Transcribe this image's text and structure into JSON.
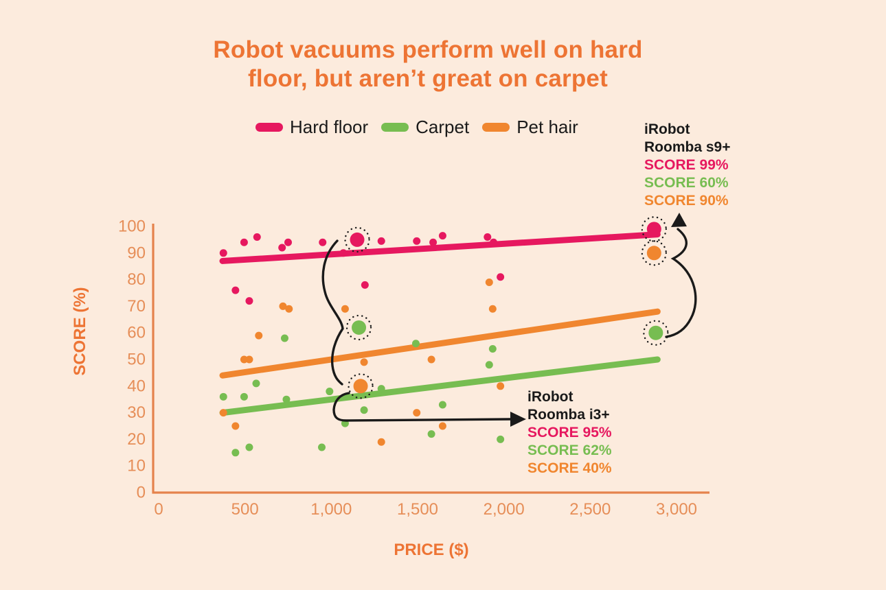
{
  "title": {
    "line1": "Robot vacuums perform well on hard",
    "line2": "floor, but aren’t great on carpet"
  },
  "legend": [
    {
      "label": "Hard floor",
      "color": "#E6185F"
    },
    {
      "label": "Carpet",
      "color": "#77BD51"
    },
    {
      "label": "Pet hair",
      "color": "#F0862F"
    }
  ],
  "annotations": {
    "s9": {
      "name_line1": "iRobot",
      "name_line2": "Roomba s9+",
      "scores": [
        {
          "text": "SCORE 99%",
          "series": "Hard floor",
          "color": "#E6185F"
        },
        {
          "text": "SCORE 60%",
          "series": "Carpet",
          "color": "#77BD51"
        },
        {
          "text": "SCORE 90%",
          "series": "Pet hair",
          "color": "#F0862F"
        }
      ]
    },
    "i3": {
      "name_line1": "iRobot",
      "name_line2": "Roomba i3+",
      "scores": [
        {
          "text": "SCORE 95%",
          "series": "Hard floor",
          "color": "#E6185F"
        },
        {
          "text": "SCORE 62%",
          "series": "Carpet",
          "color": "#77BD51"
        },
        {
          "text": "SCORE 40%",
          "series": "Pet hair",
          "color": "#F0862F"
        }
      ]
    }
  },
  "chart_data": {
    "type": "scatter",
    "title": "Robot vacuums perform well on hard floor, but aren’t great on carpet",
    "xlabel": "PRICE ($)",
    "ylabel": "SCORE (%)",
    "xlim": [
      0,
      3200
    ],
    "ylim": [
      0,
      100
    ],
    "grid": false,
    "legend_position": "top",
    "x_ticks": [
      {
        "value": 0,
        "label": "0"
      },
      {
        "value": 500,
        "label": "500"
      },
      {
        "value": 1000,
        "label": "1,000"
      },
      {
        "value": 1500,
        "label": "1,500"
      },
      {
        "value": 2000,
        "label": "2,000"
      },
      {
        "value": 2500,
        "label": "2,500"
      },
      {
        "value": 3000,
        "label": "3,000"
      }
    ],
    "y_ticks": [
      {
        "value": 100,
        "label": "100"
      },
      {
        "value": 90,
        "label": "90"
      },
      {
        "value": 80,
        "label": "80"
      },
      {
        "value": 70,
        "label": "70"
      },
      {
        "value": 60,
        "label": "60"
      },
      {
        "value": 50,
        "label": "50"
      },
      {
        "value": 40,
        "label": "40"
      },
      {
        "value": 30,
        "label": "30"
      },
      {
        "value": 20,
        "label": "20"
      },
      {
        "value": 10,
        "label": "10"
      },
      {
        "value": 0,
        "label": "0"
      }
    ],
    "series": [
      {
        "name": "Hard floor",
        "color": "#E6185F",
        "trend": {
          "x1": 370,
          "y1": 87,
          "x2": 2890,
          "y2": 97
        },
        "points": [
          [
            375,
            90
          ],
          [
            495,
            94
          ],
          [
            570,
            96
          ],
          [
            715,
            92
          ],
          [
            750,
            94
          ],
          [
            950,
            94
          ],
          [
            1070,
            90
          ],
          [
            1290,
            94.5
          ],
          [
            1495,
            94.5
          ],
          [
            1590,
            94
          ],
          [
            1645,
            96.5
          ],
          [
            1905,
            96
          ],
          [
            1940,
            94
          ],
          [
            445,
            76
          ],
          [
            525,
            72
          ],
          [
            1195,
            78
          ],
          [
            1980,
            81
          ]
        ],
        "highlights": [
          {
            "x": 1150,
            "y": 95,
            "model": "iRobot Roomba i3+"
          },
          {
            "x": 2870,
            "y": 99,
            "model": "iRobot Roomba s9+"
          }
        ]
      },
      {
        "name": "Carpet",
        "color": "#77BD51",
        "trend": {
          "x1": 370,
          "y1": 30,
          "x2": 2890,
          "y2": 50
        },
        "points": [
          [
            730,
            58
          ],
          [
            565,
            41
          ],
          [
            375,
            36
          ],
          [
            495,
            36
          ],
          [
            740,
            35
          ],
          [
            990,
            38
          ],
          [
            1290,
            39
          ],
          [
            1080,
            26
          ],
          [
            1190,
            31
          ],
          [
            1490,
            56
          ],
          [
            1645,
            33
          ],
          [
            1580,
            22
          ],
          [
            525,
            17
          ],
          [
            445,
            15
          ],
          [
            945,
            17
          ],
          [
            1915,
            48
          ],
          [
            1935,
            54
          ],
          [
            1980,
            20
          ]
        ],
        "highlights": [
          {
            "x": 1160,
            "y": 62,
            "model": "iRobot Roomba i3+"
          },
          {
            "x": 2880,
            "y": 60,
            "model": "iRobot Roomba s9+"
          }
        ]
      },
      {
        "name": "Pet hair",
        "color": "#F0862F",
        "trend": {
          "x1": 370,
          "y1": 44,
          "x2": 2890,
          "y2": 68
        },
        "points": [
          [
            580,
            59
          ],
          [
            495,
            50
          ],
          [
            525,
            50
          ],
          [
            375,
            30
          ],
          [
            445,
            25
          ],
          [
            720,
            70
          ],
          [
            755,
            69
          ],
          [
            1080,
            69
          ],
          [
            1190,
            49
          ],
          [
            1580,
            50
          ],
          [
            1495,
            30
          ],
          [
            1645,
            25
          ],
          [
            1290,
            19
          ],
          [
            1915,
            79
          ],
          [
            1935,
            69
          ],
          [
            1980,
            40
          ]
        ],
        "highlights": [
          {
            "x": 1170,
            "y": 40,
            "model": "iRobot Roomba i3+"
          },
          {
            "x": 2870,
            "y": 90,
            "model": "iRobot Roomba s9+"
          }
        ]
      }
    ]
  },
  "colors": {
    "background": "#FCEBDD",
    "title": "#ED7434",
    "axis_line": "#E5834C",
    "tick_text": "#E68E58",
    "annotation_ink": "#1A1A1A"
  }
}
